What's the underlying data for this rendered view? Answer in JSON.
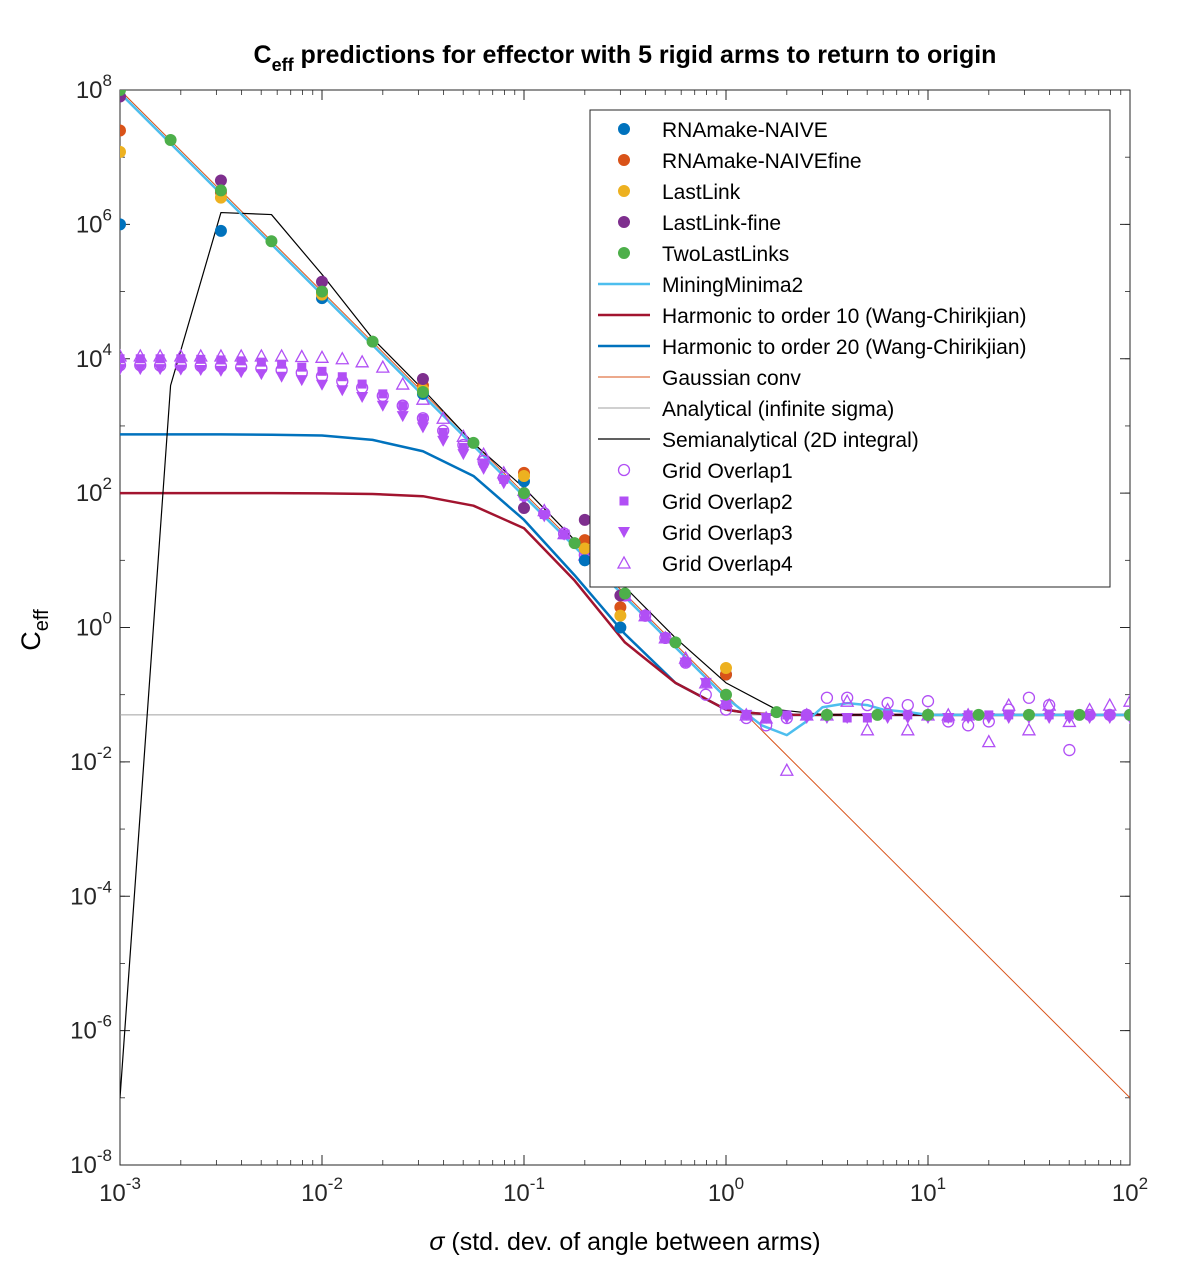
{
  "chart_data": {
    "type": "scatter",
    "title_main": "C",
    "title_sub": "eff",
    "title_rest": " predictions for effector with 5 rigid arms to return to origin",
    "xlabel_symbol": "σ",
    "xlabel_rest": " (std. dev. of angle between arms)",
    "ylabel_main": "C",
    "ylabel_sub": "eff",
    "x_scale": "log",
    "y_scale": "log",
    "xlim": [
      0.001,
      100
    ],
    "ylim": [
      1e-08,
      100000000.0
    ],
    "grid": false,
    "legend_position": "top-right",
    "x_ticks": [
      {
        "value": 0.001,
        "base": "10",
        "exp": "-3"
      },
      {
        "value": 0.01,
        "base": "10",
        "exp": "-2"
      },
      {
        "value": 0.1,
        "base": "10",
        "exp": "-1"
      },
      {
        "value": 1,
        "base": "10",
        "exp": "0"
      },
      {
        "value": 10,
        "base": "10",
        "exp": "1"
      },
      {
        "value": 100,
        "base": "10",
        "exp": "2"
      }
    ],
    "y_ticks": [
      {
        "value": 1e-08,
        "base": "10",
        "exp": "-8"
      },
      {
        "value": 1e-06,
        "base": "10",
        "exp": "-6"
      },
      {
        "value": 0.0001,
        "base": "10",
        "exp": "-4"
      },
      {
        "value": 0.01,
        "base": "10",
        "exp": "-2"
      },
      {
        "value": 1,
        "base": "10",
        "exp": "0"
      },
      {
        "value": 100,
        "base": "10",
        "exp": "2"
      },
      {
        "value": 10000,
        "base": "10",
        "exp": "4"
      },
      {
        "value": 1000000,
        "base": "10",
        "exp": "6"
      },
      {
        "value": 100000000,
        "base": "10",
        "exp": "8"
      }
    ],
    "series": [
      {
        "name": "RNAmake-NAIVE",
        "kind": "marker",
        "marker": "circle-filled",
        "color": "#0072BD",
        "x": [
          0.001,
          0.00316,
          0.01,
          0.0316,
          0.1,
          0.2,
          0.3,
          1
        ],
        "y": [
          1000000,
          800000,
          80000,
          3000,
          150,
          10,
          1,
          0.2
        ]
      },
      {
        "name": "RNAmake-NAIVEfine",
        "kind": "marker",
        "marker": "circle-filled",
        "color": "#D95319",
        "x": [
          0.001,
          0.00316,
          0.01,
          0.0316,
          0.1,
          0.2,
          0.3,
          1
        ],
        "y": [
          25000000,
          3000000,
          100000,
          4000,
          200,
          20,
          2,
          0.2
        ]
      },
      {
        "name": "LastLink",
        "kind": "marker",
        "marker": "circle-filled",
        "color": "#EDB120",
        "x": [
          0.001,
          0.00316,
          0.01,
          0.0316,
          0.1,
          0.2,
          0.3,
          1
        ],
        "y": [
          12000000,
          2500000,
          90000,
          3500,
          180,
          15,
          1.5,
          0.25
        ]
      },
      {
        "name": "LastLink-fine",
        "kind": "marker",
        "marker": "circle-filled",
        "color": "#7E2F8E",
        "x": [
          0.001,
          0.00316,
          0.01,
          0.0316,
          0.1,
          0.2,
          0.3
        ],
        "y": [
          80000000,
          4500000,
          140000,
          5000,
          60,
          40,
          3
        ]
      },
      {
        "name": "TwoLastLinks",
        "kind": "marker",
        "marker": "circle-filled",
        "color": "#4DAF4A",
        "x": [
          0.001,
          0.00178,
          0.00316,
          0.00562,
          0.01,
          0.0178,
          0.0316,
          0.0562,
          0.1,
          0.178,
          0.316,
          0.562,
          1,
          1.78,
          3.16,
          5.62,
          10,
          17.8,
          31.6,
          56.2,
          100
        ],
        "y": [
          100000000,
          18000000,
          3200000,
          560000,
          100000,
          18000,
          3200,
          560,
          100,
          18,
          3.2,
          0.6,
          0.1,
          0.055,
          0.05,
          0.05,
          0.05,
          0.05,
          0.05,
          0.05,
          0.05
        ]
      },
      {
        "name": "MiningMinima2",
        "kind": "line",
        "color": "#4DBEEE",
        "width": 2.5,
        "x": [
          0.001,
          0.01,
          0.1,
          1,
          1.5,
          2,
          2.5,
          3,
          4,
          5,
          6,
          8,
          10,
          100
        ],
        "y": [
          90000000,
          90000,
          90,
          0.09,
          0.035,
          0.025,
          0.04,
          0.065,
          0.075,
          0.07,
          0.06,
          0.055,
          0.05,
          0.05
        ]
      },
      {
        "name": "Harmonic to order 10 (Wang-Chirikjian)",
        "kind": "line",
        "color": "#A2142F",
        "width": 2.5,
        "x": [
          0.001,
          0.00178,
          0.00316,
          0.00562,
          0.01,
          0.0178,
          0.0316,
          0.0562,
          0.1,
          0.178,
          0.316,
          0.562,
          1,
          1.2,
          1.78,
          3.16,
          10,
          100
        ],
        "y": [
          100,
          100,
          100,
          100,
          99,
          97,
          90,
          65,
          30,
          5,
          0.6,
          0.15,
          0.06,
          0.055,
          0.05,
          0.05,
          0.05,
          0.05
        ]
      },
      {
        "name": "Harmonic to order 20 (Wang-Chirikjian)",
        "kind": "line",
        "color": "#0072BD",
        "width": 2.5,
        "x": [
          0.001,
          0.00178,
          0.00316,
          0.00562,
          0.01,
          0.0178,
          0.0316,
          0.0562,
          0.1,
          0.178,
          0.316,
          0.562,
          1,
          1.2,
          1.78,
          3.16,
          10,
          100
        ],
        "y": [
          750,
          750,
          750,
          740,
          720,
          620,
          420,
          180,
          40,
          6,
          0.8,
          0.15,
          0.06,
          0.055,
          0.05,
          0.05,
          0.05,
          0.05
        ]
      },
      {
        "name": "Gaussian conv",
        "kind": "line",
        "color": "#D95319",
        "width": 1,
        "x": [
          0.001,
          100
        ],
        "y": [
          100000000,
          1e-07
        ]
      },
      {
        "name": "Analytical (infinite sigma)",
        "kind": "line",
        "color": "#A0A0A0",
        "width": 1,
        "x": [
          0.001,
          100
        ],
        "y": [
          0.05,
          0.05
        ]
      },
      {
        "name": "Semianalytical (2D integral)",
        "kind": "line",
        "color": "#000000",
        "width": 1.2,
        "x": [
          0.001,
          0.00178,
          0.00316,
          0.00562,
          0.01,
          0.0178,
          0.0316,
          0.0562,
          0.1,
          0.178,
          0.316,
          0.562,
          1,
          1.78,
          3.16,
          10,
          100
        ],
        "y": [
          1e-07,
          4000,
          1500000,
          1400000,
          180000,
          20000,
          3500,
          550,
          120,
          20,
          4,
          0.7,
          0.15,
          0.06,
          0.05,
          0.05,
          0.05
        ]
      },
      {
        "name": "Grid Overlap1",
        "kind": "marker",
        "marker": "circle-open",
        "color": "#B14FF5",
        "x": [
          0.001,
          0.00126,
          0.00158,
          0.002,
          0.00251,
          0.00316,
          0.00398,
          0.00501,
          0.00631,
          0.00794,
          0.01,
          0.0126,
          0.0158,
          0.02,
          0.0251,
          0.0316,
          0.0398,
          0.0501,
          0.0631,
          0.0794,
          0.1,
          0.126,
          0.158,
          0.2,
          0.251,
          0.316,
          0.398,
          0.501,
          0.631,
          0.794,
          1,
          1.26,
          1.58,
          2,
          2.51,
          3.16,
          3.98,
          5.01,
          6.31,
          7.94,
          10,
          12.6,
          15.8,
          20,
          25.1,
          31.6,
          39.8,
          50.1,
          63.1,
          79.4,
          100
        ],
        "y": [
          8000,
          8000,
          7900,
          7900,
          7800,
          7700,
          7500,
          7200,
          6800,
          6200,
          5500,
          4600,
          3700,
          2800,
          2000,
          1300,
          850,
          520,
          300,
          170,
          95,
          50,
          25,
          12,
          6,
          3,
          1.5,
          0.7,
          0.3,
          0.1,
          0.06,
          0.045,
          0.035,
          0.045,
          0.05,
          0.09,
          0.09,
          0.07,
          0.075,
          0.07,
          0.08,
          0.04,
          0.035,
          0.04,
          0.06,
          0.09,
          0.07,
          0.015,
          0.05,
          0.05,
          0.05
        ]
      },
      {
        "name": "Grid Overlap2",
        "kind": "marker",
        "marker": "square-filled",
        "color": "#B14FF5",
        "x": [
          0.001,
          0.00126,
          0.00158,
          0.002,
          0.00251,
          0.00316,
          0.00398,
          0.00501,
          0.00631,
          0.00794,
          0.01,
          0.0126,
          0.0158,
          0.02,
          0.0251,
          0.0316,
          0.0398,
          0.0501,
          0.0631,
          0.0794,
          0.1,
          0.126,
          0.158,
          0.2,
          0.251,
          0.316,
          0.398,
          0.501,
          0.631,
          0.794,
          1,
          1.26,
          1.58,
          2,
          2.51,
          3.16,
          3.98,
          5.01,
          6.31,
          7.94,
          10,
          12.6,
          15.8,
          20,
          25.1,
          31.6,
          39.8,
          50.1,
          63.1,
          79.4,
          100
        ],
        "y": [
          10000,
          10000,
          10000,
          10000,
          9800,
          9600,
          9300,
          8900,
          8300,
          7500,
          6500,
          5400,
          4200,
          3000,
          2000,
          1300,
          800,
          480,
          280,
          160,
          90,
          48,
          24,
          12,
          6,
          3,
          1.5,
          0.7,
          0.3,
          0.15,
          0.07,
          0.05,
          0.045,
          0.05,
          0.05,
          0.05,
          0.045,
          0.045,
          0.05,
          0.05,
          0.05,
          0.045,
          0.05,
          0.05,
          0.05,
          0.05,
          0.05,
          0.05,
          0.05,
          0.05,
          0.05
        ]
      },
      {
        "name": "Grid Overlap3",
        "kind": "marker",
        "marker": "triangle-down-filled",
        "color": "#B14FF5",
        "x": [
          0.001,
          0.00126,
          0.00158,
          0.002,
          0.00251,
          0.00316,
          0.00398,
          0.00501,
          0.00631,
          0.00794,
          0.01,
          0.0126,
          0.0158,
          0.02,
          0.0251,
          0.0316,
          0.0398,
          0.0501,
          0.0631,
          0.0794,
          0.1,
          0.126,
          0.158,
          0.2,
          0.251,
          0.316,
          0.398,
          0.501,
          0.631,
          0.794,
          1,
          1.26,
          1.58,
          2,
          2.51,
          3.16,
          3.98,
          5.01,
          6.31,
          7.94,
          10,
          12.6,
          15.8,
          20,
          25.1,
          31.6,
          39.8,
          50.1,
          63.1,
          79.4,
          100
        ],
        "y": [
          7000,
          7000,
          7000,
          6900,
          6800,
          6600,
          6300,
          5900,
          5400,
          4800,
          4100,
          3400,
          2700,
          2000,
          1400,
          950,
          600,
          380,
          230,
          140,
          80,
          45,
          24,
          12,
          6,
          3,
          1.5,
          0.7,
          0.3,
          0.15,
          0.07,
          0.05,
          0.045,
          0.045,
          0.045,
          0.045,
          0.045,
          0.045,
          0.045,
          0.045,
          0.045,
          0.045,
          0.045,
          0.045,
          0.045,
          0.045,
          0.045,
          0.045,
          0.045,
          0.045,
          0.045
        ]
      },
      {
        "name": "Grid Overlap4",
        "kind": "marker",
        "marker": "triangle-up-open",
        "color": "#B14FF5",
        "x": [
          0.001,
          0.00126,
          0.00158,
          0.002,
          0.00251,
          0.00316,
          0.00398,
          0.00501,
          0.00631,
          0.00794,
          0.01,
          0.0126,
          0.0158,
          0.02,
          0.0251,
          0.0316,
          0.0398,
          0.0501,
          0.0631,
          0.0794,
          0.1,
          0.126,
          0.158,
          0.2,
          0.251,
          0.316,
          0.398,
          0.501,
          0.631,
          0.794,
          1,
          1.26,
          1.58,
          2,
          2.51,
          3.16,
          3.98,
          5.01,
          6.31,
          7.94,
          10,
          12.6,
          15.8,
          20,
          25.1,
          31.6,
          39.8,
          50.1,
          63.1,
          79.4,
          100
        ],
        "y": [
          11000,
          11000,
          11000,
          11000,
          11000,
          11000,
          11000,
          11000,
          11000,
          10800,
          10500,
          10000,
          9000,
          7500,
          4200,
          2500,
          1300,
          700,
          380,
          200,
          110,
          55,
          25,
          12,
          6,
          3,
          1.5,
          0.7,
          0.35,
          0.15,
          0.08,
          0.05,
          0.045,
          0.0075,
          0.05,
          0.05,
          0.08,
          0.03,
          0.06,
          0.03,
          0.05,
          0.05,
          0.05,
          0.02,
          0.07,
          0.03,
          0.07,
          0.04,
          0.06,
          0.07,
          0.08
        ]
      }
    ]
  }
}
